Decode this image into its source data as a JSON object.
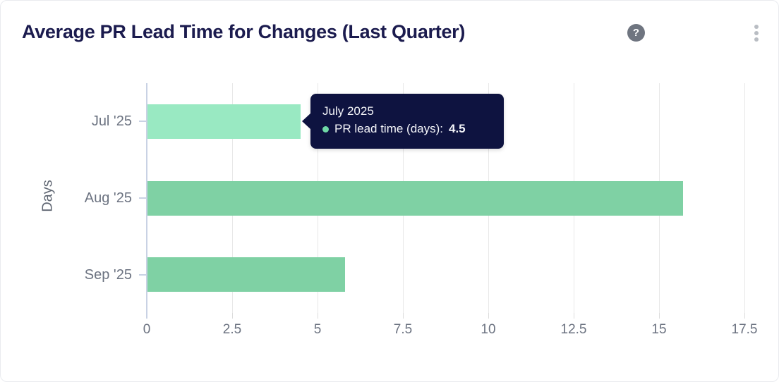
{
  "header": {
    "title": "Average PR Lead Time for Changes (Last Quarter)",
    "help_glyph": "?",
    "help_icon_name": "help-question-icon",
    "menu_icon_name": "kebab-vertical-icon"
  },
  "chart_data": {
    "type": "bar",
    "orientation": "horizontal",
    "title": "Average PR Lead Time for Changes (Last Quarter)",
    "categories": [
      "Jul '25",
      "Aug '25",
      "Sep '25"
    ],
    "values": [
      4.5,
      15.7,
      5.8
    ],
    "series_name": "PR lead time (days)",
    "xlabel": "",
    "ylabel": "Days",
    "xlim": [
      0,
      17.5
    ],
    "x_ticks": [
      0,
      2.5,
      5,
      7.5,
      10,
      12.5,
      15,
      17.5
    ],
    "x_tick_labels": [
      "0",
      "2.5",
      "5",
      "7.5",
      "10",
      "12.5",
      "15",
      "17.5"
    ],
    "grid": "vertical",
    "legend": "none",
    "highlighted_index": 0
  },
  "tooltip": {
    "title": "July 2025",
    "series_label": "PR lead time (days):",
    "value": "4.5"
  },
  "colors": {
    "title_text": "#1b1b4e",
    "bar": "#7fd1a4",
    "bar_highlighted": "#99e9c2",
    "axis_line": "#c9d2e4",
    "gridline": "#e8e8e8",
    "tick_label": "#6b7280",
    "tooltip_bg": "#0e1340",
    "tooltip_text": "#f4f5f9",
    "tooltip_dot": "#6fd9a6",
    "help_icon_bg": "#6f7580",
    "kebab_dots": "#b9bdc3"
  }
}
